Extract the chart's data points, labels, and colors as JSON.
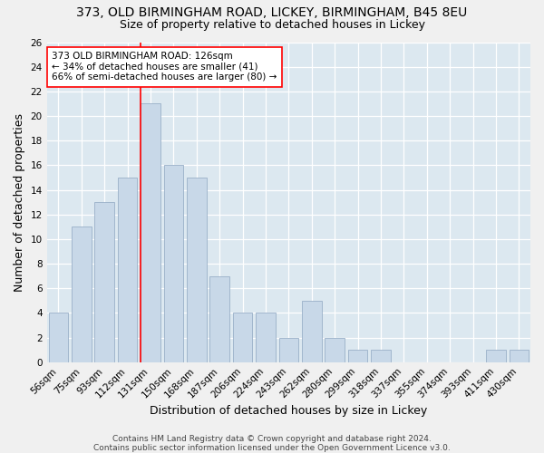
{
  "title": "373, OLD BIRMINGHAM ROAD, LICKEY, BIRMINGHAM, B45 8EU",
  "subtitle": "Size of property relative to detached houses in Lickey",
  "xlabel": "Distribution of detached houses by size in Lickey",
  "ylabel": "Number of detached properties",
  "categories": [
    "56sqm",
    "75sqm",
    "93sqm",
    "112sqm",
    "131sqm",
    "150sqm",
    "168sqm",
    "187sqm",
    "206sqm",
    "224sqm",
    "243sqm",
    "262sqm",
    "280sqm",
    "299sqm",
    "318sqm",
    "337sqm",
    "355sqm",
    "374sqm",
    "393sqm",
    "411sqm",
    "430sqm"
  ],
  "values": [
    4,
    11,
    13,
    15,
    21,
    16,
    15,
    7,
    4,
    4,
    2,
    5,
    2,
    1,
    1,
    0,
    0,
    0,
    0,
    1,
    1
  ],
  "bar_color": "#c8d8e8",
  "bar_edge_color": "#9ab0c8",
  "ylim": [
    0,
    26
  ],
  "yticks": [
    0,
    2,
    4,
    6,
    8,
    10,
    12,
    14,
    16,
    18,
    20,
    22,
    24,
    26
  ],
  "red_line_index": 4,
  "annotation_lines": [
    "373 OLD BIRMINGHAM ROAD: 126sqm",
    "← 34% of detached houses are smaller (41)",
    "66% of semi-detached houses are larger (80) →"
  ],
  "footer": "Contains HM Land Registry data © Crown copyright and database right 2024.\nContains public sector information licensed under the Open Government Licence v3.0.",
  "background_color": "#dce8f0",
  "grid_color": "#ffffff",
  "fig_background": "#f0f0f0",
  "title_fontsize": 10,
  "subtitle_fontsize": 9,
  "axis_label_fontsize": 9,
  "tick_fontsize": 7.5,
  "annotation_fontsize": 7.5,
  "footer_fontsize": 6.5
}
